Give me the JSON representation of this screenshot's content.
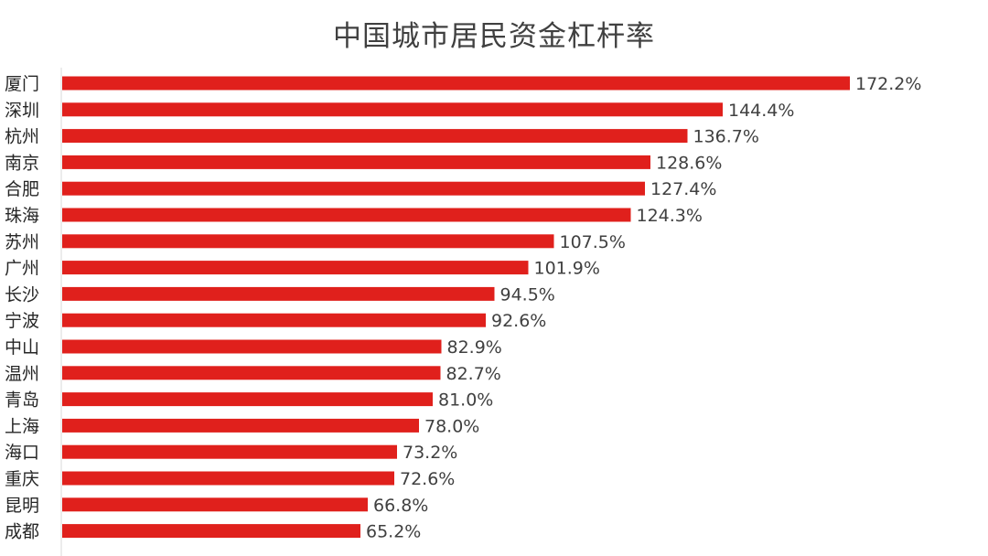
{
  "chart_data": {
    "type": "bar",
    "orientation": "horizontal",
    "title": "中国城市居民资金杠杆率",
    "xlabel": "",
    "ylabel": "",
    "xlim": [
      0,
      180
    ],
    "value_suffix": "%",
    "bar_color": "#e0201c",
    "axis_color": "#d9d9d9",
    "grid": false,
    "legend": "none",
    "categories": [
      "厦门",
      "深圳",
      "杭州",
      "南京",
      "合肥",
      "珠海",
      "苏州",
      "广州",
      "长沙",
      "宁波",
      "中山",
      "温州",
      "青岛",
      "上海",
      "海口",
      "重庆",
      "昆明",
      "成都"
    ],
    "values": [
      172.2,
      144.4,
      136.7,
      128.6,
      127.4,
      124.3,
      107.5,
      101.9,
      94.5,
      92.6,
      82.9,
      82.7,
      81.0,
      78.0,
      73.2,
      72.6,
      66.8,
      65.2
    ],
    "value_labels": [
      "172.2%",
      "144.4%",
      "136.7%",
      "128.6%",
      "127.4%",
      "124.3%",
      "107.5%",
      "101.9%",
      "94.5%",
      "92.6%",
      "82.9%",
      "82.7%",
      "81.0%",
      "78.0%",
      "73.2%",
      "72.6%",
      "66.8%",
      "65.2%"
    ]
  }
}
